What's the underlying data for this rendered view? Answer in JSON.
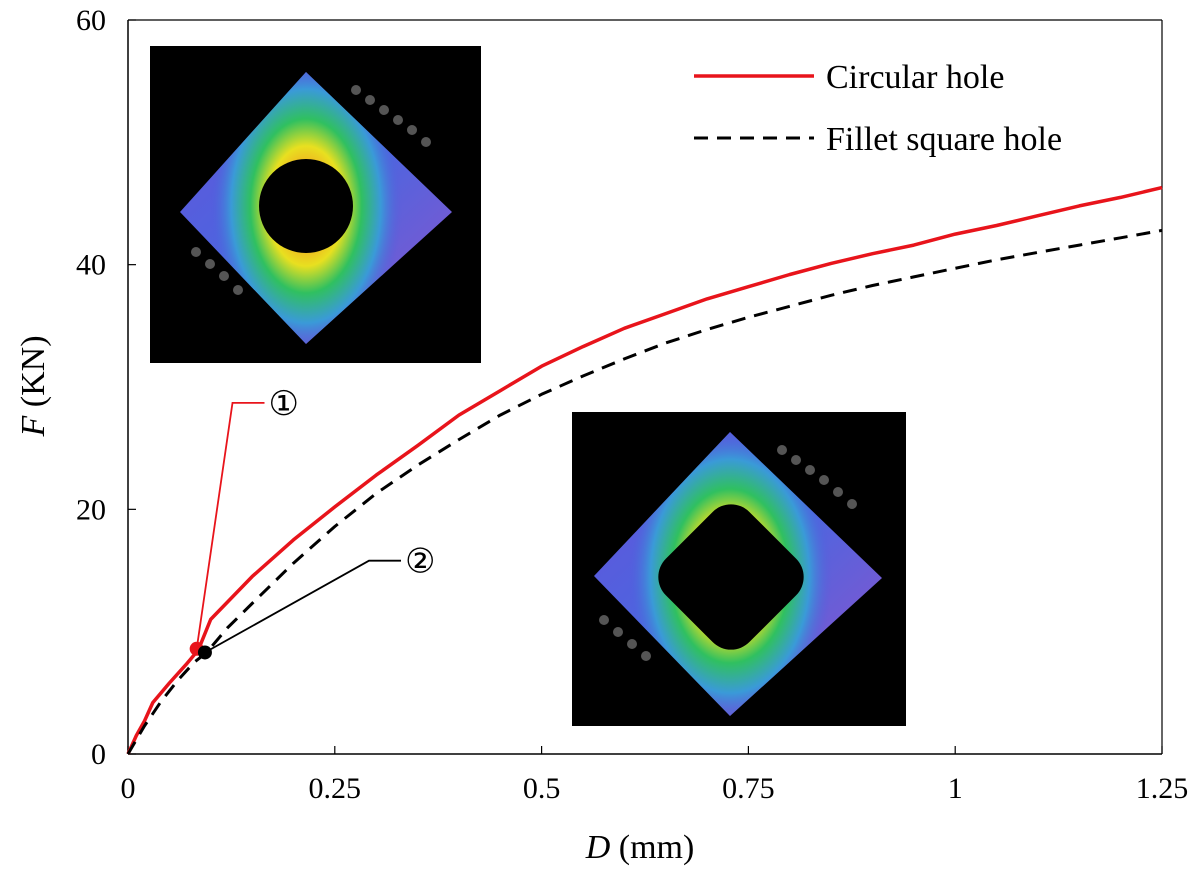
{
  "chart_data": {
    "type": "line",
    "xlabel": {
      "var": "D",
      "unit": " (mm)"
    },
    "ylabel": {
      "var": "F",
      "unit": " (KN)"
    },
    "xlim": [
      0,
      1.25
    ],
    "ylim": [
      0,
      60
    ],
    "xticks": [
      0,
      0.25,
      0.5,
      0.75,
      1,
      1.25
    ],
    "xtick_labels": [
      "0",
      "0.25",
      "0.5",
      "0.75",
      "1",
      "1.25"
    ],
    "yticks": [
      0,
      20,
      40,
      60
    ],
    "ytick_labels": [
      "0",
      "20",
      "40",
      "60"
    ],
    "grid": false,
    "legend_position": "top-right",
    "series": [
      {
        "name": "Circular hole",
        "color": "#e8141b",
        "style": "solid",
        "x": [
          0,
          0.01,
          0.02,
          0.03,
          0.05,
          0.07,
          0.085,
          0.1,
          0.15,
          0.2,
          0.25,
          0.3,
          0.35,
          0.4,
          0.45,
          0.5,
          0.55,
          0.6,
          0.65,
          0.7,
          0.75,
          0.8,
          0.85,
          0.9,
          0.95,
          1.0,
          1.05,
          1.1,
          1.15,
          1.2,
          1.25
        ],
        "y": [
          0,
          1.5,
          2.7,
          4.2,
          5.8,
          7.3,
          8.5,
          11.0,
          14.5,
          17.5,
          20.2,
          22.8,
          25.2,
          27.7,
          29.7,
          31.7,
          33.3,
          34.8,
          36.0,
          37.2,
          38.2,
          39.2,
          40.1,
          40.9,
          41.6,
          42.5,
          43.2,
          44.0,
          44.8,
          45.5,
          46.3
        ]
      },
      {
        "name": "Fillet square hole",
        "color": "#000000",
        "style": "dashed",
        "x": [
          0,
          0.02,
          0.04,
          0.06,
          0.08,
          0.095,
          0.12,
          0.15,
          0.2,
          0.25,
          0.3,
          0.35,
          0.4,
          0.45,
          0.5,
          0.55,
          0.6,
          0.65,
          0.7,
          0.75,
          0.8,
          0.85,
          0.9,
          0.95,
          1.0,
          1.05,
          1.1,
          1.15,
          1.2,
          1.25
        ],
        "y": [
          0,
          2.3,
          4.3,
          6.0,
          7.5,
          8.3,
          10.3,
          12.3,
          15.6,
          18.6,
          21.3,
          23.6,
          25.7,
          27.7,
          29.4,
          30.9,
          32.3,
          33.6,
          34.7,
          35.7,
          36.6,
          37.5,
          38.3,
          39.0,
          39.7,
          40.4,
          41.0,
          41.6,
          42.2,
          42.8
        ]
      }
    ],
    "markers": [
      {
        "label": "①",
        "x": 0.083,
        "y": 8.6,
        "color": "#e8141b",
        "label_at": [
          0.165,
          28.7
        ]
      },
      {
        "label": "②",
        "x": 0.093,
        "y": 8.3,
        "color": "#000000",
        "label_at": [
          0.33,
          15.8
        ]
      }
    ]
  }
}
